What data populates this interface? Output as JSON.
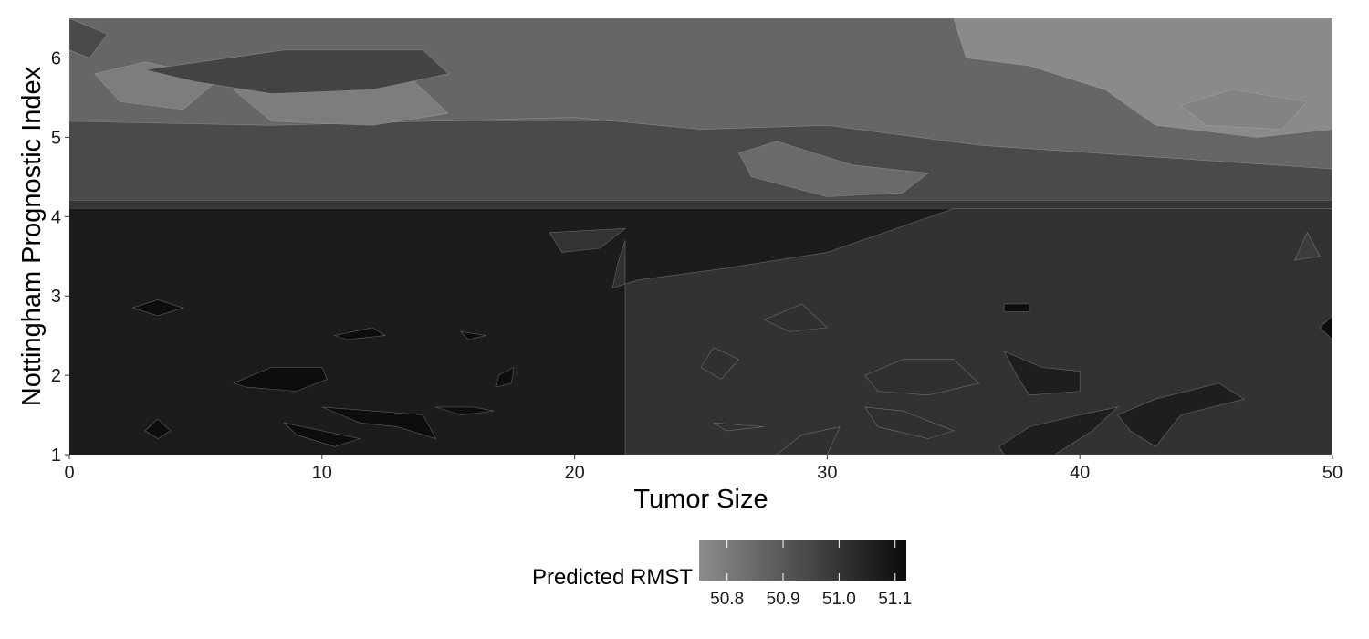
{
  "chart_data": {
    "type": "heatmap",
    "title": "",
    "xlabel": "Tumor Size",
    "ylabel": "Nottingham Prognostic Index",
    "xlim": [
      0,
      50
    ],
    "ylim": [
      1,
      6.5
    ],
    "x_ticks": [
      0,
      10,
      20,
      30,
      40,
      50
    ],
    "x_tick_labels": [
      "0",
      "10",
      "20",
      "30",
      "40",
      "50"
    ],
    "y_ticks": [
      1,
      2,
      3,
      4,
      5,
      6
    ],
    "y_tick_labels": [
      "1",
      "2",
      "3",
      "4",
      "5",
      "6"
    ],
    "colorbar": {
      "title": "Predicted RMST",
      "range": [
        50.75,
        51.12
      ],
      "ticks": [
        50.8,
        50.9,
        51.0,
        51.1
      ],
      "tick_labels": [
        "50.8",
        "50.9",
        "51.0",
        "51.1"
      ],
      "color_low": "#8c8c8c",
      "color_high": "#0b0b0b",
      "position": "bottom"
    },
    "bands": [
      {
        "ymin": 1.0,
        "ymax": 4.1,
        "level": 51.05,
        "color": "#1c1c1c"
      },
      {
        "ymin": 4.1,
        "ymax": 4.2,
        "level": 50.95,
        "color": "#363636"
      },
      {
        "ymin": 4.2,
        "ymax": 5.2,
        "level": 50.9,
        "color": "#4a4a4a"
      },
      {
        "ymin": 5.2,
        "ymax": 6.5,
        "level": 50.85,
        "color": "#666666"
      }
    ],
    "regions": [
      {
        "label": "high-x mid band",
        "level": 51.0,
        "color": "#323232",
        "points": [
          [
            22,
            1
          ],
          [
            50,
            1
          ],
          [
            50,
            4.1
          ],
          [
            35,
            4.1
          ],
          [
            30,
            3.55
          ],
          [
            26,
            3.35
          ],
          [
            22.5,
            3.2
          ],
          [
            21.5,
            3.1
          ],
          [
            21.7,
            3.4
          ],
          [
            22,
            3.7
          ]
        ]
      },
      {
        "label": "upper-left lighter",
        "level": 50.85,
        "color": "#666666",
        "points": [
          [
            0,
            5.2
          ],
          [
            8,
            5.15
          ],
          [
            14,
            5.2
          ],
          [
            20,
            5.25
          ],
          [
            25,
            5.1
          ],
          [
            30,
            5.15
          ],
          [
            36,
            4.9
          ],
          [
            43,
            4.75
          ],
          [
            50,
            4.6
          ],
          [
            50,
            6.5
          ],
          [
            0,
            6.5
          ]
        ]
      },
      {
        "label": "top-right lightest",
        "level": 50.78,
        "color": "#8a8a8a",
        "points": [
          [
            35,
            6.5
          ],
          [
            50,
            6.5
          ],
          [
            50,
            5.1
          ],
          [
            47,
            5.0
          ],
          [
            43,
            5.15
          ],
          [
            41,
            5.6
          ],
          [
            38,
            5.9
          ],
          [
            35.5,
            6.0
          ]
        ]
      },
      {
        "label": "top-left lightest",
        "level": 50.8,
        "color": "#7d7d7d",
        "points": [
          [
            1,
            5.8
          ],
          [
            3,
            5.95
          ],
          [
            6,
            5.75
          ],
          [
            4.5,
            5.35
          ],
          [
            2,
            5.45
          ]
        ]
      },
      {
        "label": "top-mid lightest",
        "level": 50.8,
        "color": "#7d7d7d",
        "points": [
          [
            6.5,
            5.6
          ],
          [
            9,
            5.85
          ],
          [
            13.5,
            5.75
          ],
          [
            15,
            5.3
          ],
          [
            12,
            5.15
          ],
          [
            8,
            5.2
          ]
        ]
      },
      {
        "label": "upper-mid dark",
        "level": 50.9,
        "color": "#444444",
        "points": [
          [
            3,
            5.85
          ],
          [
            8.5,
            6.1
          ],
          [
            14,
            6.1
          ],
          [
            15,
            5.8
          ],
          [
            12,
            5.6
          ],
          [
            8,
            5.55
          ],
          [
            5,
            5.7
          ]
        ]
      },
      {
        "label": "upper-left dark wedge",
        "level": 50.9,
        "color": "#4a4a4a",
        "points": [
          [
            0,
            6.5
          ],
          [
            1.5,
            6.3
          ],
          [
            0.8,
            6.0
          ],
          [
            0,
            6.1
          ]
        ]
      },
      {
        "label": "mid blob right",
        "level": 50.85,
        "color": "#6a6a6a",
        "points": [
          [
            26.5,
            4.8
          ],
          [
            28,
            4.95
          ],
          [
            31,
            4.65
          ],
          [
            34,
            4.55
          ],
          [
            33,
            4.3
          ],
          [
            30,
            4.25
          ],
          [
            27,
            4.5
          ]
        ]
      },
      {
        "label": "right blob lighter",
        "level": 50.8,
        "color": "#838383",
        "points": [
          [
            44,
            5.4
          ],
          [
            46,
            5.6
          ],
          [
            49,
            5.45
          ],
          [
            48,
            5.1
          ],
          [
            45,
            5.15
          ]
        ]
      },
      {
        "label": "mid-left band bump",
        "level": 51.0,
        "color": "#333333",
        "points": [
          [
            19,
            3.8
          ],
          [
            22,
            3.85
          ],
          [
            21,
            3.6
          ],
          [
            19.5,
            3.55
          ]
        ]
      },
      {
        "label": "lower dark 1",
        "level": 51.1,
        "color": "#0d0d0d",
        "points": [
          [
            2.5,
            2.85
          ],
          [
            3.5,
            2.95
          ],
          [
            4.5,
            2.85
          ],
          [
            3.5,
            2.75
          ]
        ]
      },
      {
        "label": "lower dark 2",
        "level": 51.1,
        "color": "#0d0d0d",
        "points": [
          [
            6.5,
            1.9
          ],
          [
            8,
            2.1
          ],
          [
            10,
            2.1
          ],
          [
            10.2,
            1.95
          ],
          [
            9,
            1.8
          ],
          [
            7,
            1.85
          ]
        ]
      },
      {
        "label": "lower dark 3",
        "level": 51.1,
        "color": "#0d0d0d",
        "points": [
          [
            10.5,
            2.5
          ],
          [
            12,
            2.6
          ],
          [
            12.5,
            2.5
          ],
          [
            11,
            2.45
          ]
        ]
      },
      {
        "label": "lower dark 4",
        "level": 51.1,
        "color": "#0d0d0d",
        "points": [
          [
            10,
            1.6
          ],
          [
            12,
            1.55
          ],
          [
            14,
            1.5
          ],
          [
            14.5,
            1.2
          ],
          [
            13,
            1.35
          ],
          [
            11.5,
            1.4
          ]
        ]
      },
      {
        "label": "lower dark 5",
        "level": 51.1,
        "color": "#0d0d0d",
        "points": [
          [
            8.5,
            1.4
          ],
          [
            10,
            1.3
          ],
          [
            11.5,
            1.2
          ],
          [
            10.5,
            1.1
          ],
          [
            9,
            1.25
          ]
        ]
      },
      {
        "label": "lower dark 6",
        "level": 51.1,
        "color": "#0d0d0d",
        "points": [
          [
            15.5,
            2.55
          ],
          [
            16.5,
            2.5
          ],
          [
            15.8,
            2.45
          ]
        ]
      },
      {
        "label": "lower dark 7",
        "level": 51.1,
        "color": "#0d0d0d",
        "points": [
          [
            14.5,
            1.6
          ],
          [
            16,
            1.6
          ],
          [
            16.8,
            1.55
          ],
          [
            15.5,
            1.5
          ]
        ]
      },
      {
        "label": "lower dark 8",
        "level": 51.1,
        "color": "#0d0d0d",
        "points": [
          [
            17,
            2.0
          ],
          [
            17.6,
            2.1
          ],
          [
            17.5,
            1.9
          ],
          [
            16.9,
            1.85
          ]
        ]
      },
      {
        "label": "lower dark 9",
        "level": 51.1,
        "color": "#0d0d0d",
        "points": [
          [
            37,
            2.9
          ],
          [
            38,
            2.9
          ],
          [
            38,
            2.8
          ],
          [
            37,
            2.8
          ]
        ]
      },
      {
        "label": "lower dark 10",
        "level": 51.1,
        "color": "#0d0d0d",
        "points": [
          [
            50,
            2.75
          ],
          [
            49.5,
            2.6
          ],
          [
            50,
            2.45
          ]
        ]
      },
      {
        "label": "lower dark 11",
        "level": 51.1,
        "color": "#0d0d0d",
        "points": [
          [
            3,
            1.3
          ],
          [
            3.5,
            1.45
          ],
          [
            4,
            1.3
          ],
          [
            3.5,
            1.2
          ]
        ]
      },
      {
        "label": "lower-right lighter 1",
        "level": 50.97,
        "color": "#303030",
        "points": [
          [
            27.5,
            2.7
          ],
          [
            29,
            2.9
          ],
          [
            30,
            2.6
          ],
          [
            28.5,
            2.55
          ]
        ]
      },
      {
        "label": "lower-right lighter 2",
        "level": 50.97,
        "color": "#303030",
        "points": [
          [
            25,
            2.1
          ],
          [
            25.5,
            2.35
          ],
          [
            26.5,
            2.2
          ],
          [
            25.8,
            1.95
          ]
        ]
      },
      {
        "label": "lower-right lighter 3",
        "level": 50.97,
        "color": "#303030",
        "points": [
          [
            31.5,
            2.0
          ],
          [
            33,
            2.2
          ],
          [
            35,
            2.2
          ],
          [
            36,
            1.9
          ],
          [
            34,
            1.75
          ],
          [
            32,
            1.8
          ]
        ]
      },
      {
        "label": "lower-right lighter 4",
        "level": 50.97,
        "color": "#303030",
        "points": [
          [
            31.5,
            1.6
          ],
          [
            33,
            1.55
          ],
          [
            35,
            1.3
          ],
          [
            34,
            1.2
          ],
          [
            32,
            1.35
          ]
        ]
      },
      {
        "label": "lower-right lighter 5",
        "level": 50.97,
        "color": "#303030",
        "points": [
          [
            28,
            1.0
          ],
          [
            30,
            1.0
          ],
          [
            30.5,
            1.35
          ],
          [
            29,
            1.25
          ]
        ]
      },
      {
        "label": "lower-right lighter 6",
        "level": 50.97,
        "color": "#303030",
        "points": [
          [
            25.5,
            1.4
          ],
          [
            27.5,
            1.35
          ],
          [
            26,
            1.3
          ]
        ]
      },
      {
        "label": "lower-right darker 1",
        "level": 51.05,
        "color": "#1e1e1e",
        "points": [
          [
            37,
            2.3
          ],
          [
            38.5,
            2.1
          ],
          [
            40,
            2.05
          ],
          [
            40,
            1.8
          ],
          [
            38,
            1.75
          ],
          [
            37.5,
            2.0
          ]
        ]
      },
      {
        "label": "lower-right darker 2",
        "level": 51.05,
        "color": "#1e1e1e",
        "points": [
          [
            41.5,
            1.5
          ],
          [
            43,
            1.7
          ],
          [
            45.5,
            1.9
          ],
          [
            46.5,
            1.7
          ],
          [
            44,
            1.5
          ],
          [
            43,
            1.1
          ],
          [
            42,
            1.3
          ]
        ]
      },
      {
        "label": "lower-right darker 3",
        "level": 51.05,
        "color": "#1e1e1e",
        "points": [
          [
            37,
            1.0
          ],
          [
            39,
            1.0
          ],
          [
            40.5,
            1.3
          ],
          [
            41.5,
            1.6
          ],
          [
            40,
            1.5
          ],
          [
            38,
            1.35
          ],
          [
            36.8,
            1.1
          ]
        ]
      },
      {
        "label": "right-edge lighter",
        "level": 50.9,
        "color": "#3c3c3c",
        "points": [
          [
            48.5,
            3.45
          ],
          [
            49,
            3.8
          ],
          [
            49.5,
            3.5
          ]
        ]
      }
    ]
  }
}
